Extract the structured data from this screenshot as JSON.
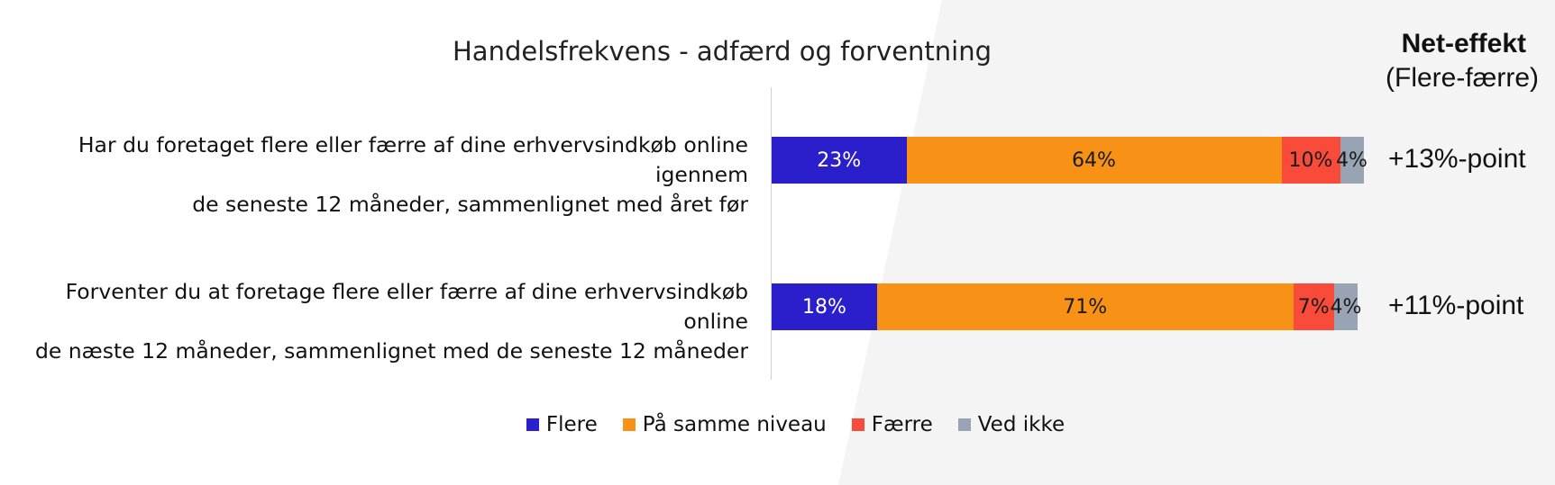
{
  "chart_data": {
    "type": "bar",
    "orientation": "horizontal",
    "stacked": true,
    "title": "Handelsfrekvens - adfærd og forventning",
    "categories": [
      "Har du foretaget flere eller færre af dine erhvervsindkøb online igennem de seneste 12 måneder, sammenlignet med året før",
      "Forventer du at foretage flere eller færre af dine erhvervsindkøb online de næste 12 måneder, sammenlignet med de seneste 12 måneder"
    ],
    "category_lines": [
      [
        "Har du foretaget flere eller færre af dine erhvervsindkøb online igennem",
        "de seneste 12 måneder, sammenlignet med året før"
      ],
      [
        "Forventer du at foretage flere eller færre af dine erhvervsindkøb online",
        "de næste 12 måneder, sammenlignet med de seneste 12 måneder"
      ]
    ],
    "series": [
      {
        "name": "Flere",
        "color": "#2b1fcc",
        "text_color": "#ffffff",
        "values": [
          23,
          18
        ],
        "labels": [
          "23%",
          "18%"
        ]
      },
      {
        "name": "På samme niveau",
        "color": "#f79216",
        "text_color": "#1a1a1a",
        "values": [
          64,
          71
        ],
        "labels": [
          "64%",
          "71%"
        ]
      },
      {
        "name": "Færre",
        "color": "#f84b3a",
        "text_color": "#1a1a1a",
        "values": [
          10,
          7
        ],
        "labels": [
          "10%",
          "7%"
        ]
      },
      {
        "name": "Ved ikke",
        "color": "#98a3b4",
        "text_color": "#1a1a1a",
        "values": [
          4,
          4
        ],
        "labels": [
          "4%",
          "4%"
        ]
      }
    ],
    "xlim": [
      0,
      100
    ],
    "net_effect": {
      "heading": "Net-effekt",
      "subheading": "(Flere-færre)",
      "values": [
        "+13%-point",
        "+11%-point"
      ]
    },
    "legend": {
      "position": "bottom"
    }
  }
}
